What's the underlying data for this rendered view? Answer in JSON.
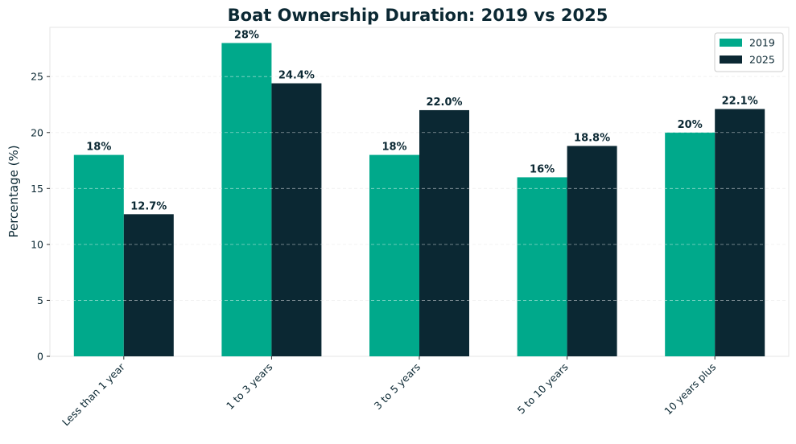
{
  "chart_data": {
    "type": "bar",
    "title": "Boat Ownership Duration: 2019 vs 2025",
    "xlabel": "",
    "ylabel": "Percentage (%)",
    "categories": [
      "Less than 1 year",
      "1 to 3 years",
      "3 to 5 years",
      "5 to 10 years",
      "10 years plus"
    ],
    "series": [
      {
        "name": "2019",
        "color": "#00a98b",
        "values": [
          18,
          28,
          18,
          16,
          20
        ],
        "labels": [
          "18%",
          "28%",
          "18%",
          "16%",
          "20%"
        ]
      },
      {
        "name": "2025",
        "color": "#0b2833",
        "values": [
          12.7,
          24.4,
          22.0,
          18.8,
          22.1
        ],
        "labels": [
          "12.7%",
          "24.4%",
          "22.0%",
          "18.8%",
          "22.1%"
        ]
      }
    ],
    "ylim": [
      0,
      29.4
    ],
    "yticks": [
      0,
      5,
      10,
      15,
      20,
      25
    ],
    "grid": true,
    "legend_position": "top-right"
  }
}
